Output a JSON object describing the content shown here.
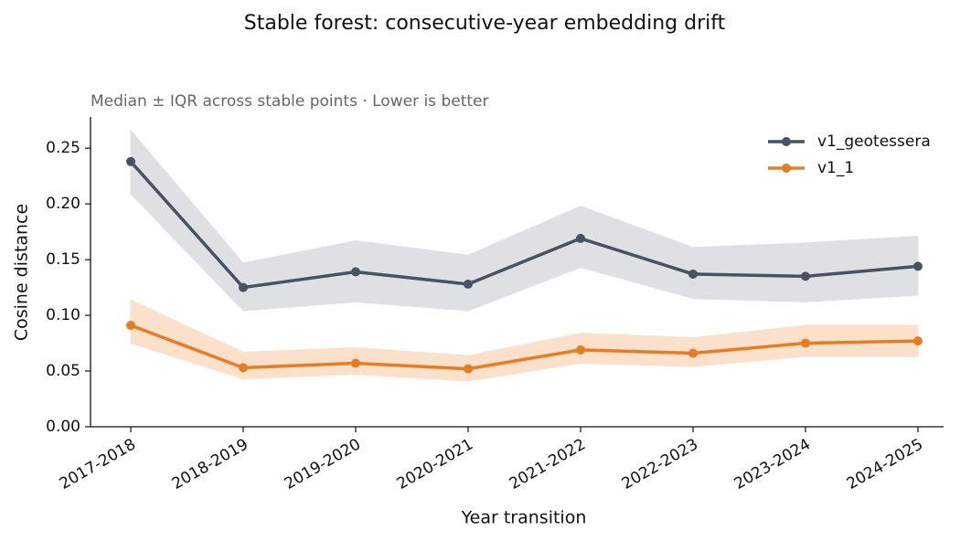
{
  "chart_data": {
    "type": "line",
    "title": "Stable forest: consecutive-year embedding drift",
    "subtitle": "Median ± IQR across stable points  ·  Lower is better",
    "x_label": "Year transition",
    "y_label": "Cosine distance",
    "categories": [
      "2017-2018",
      "2018-2019",
      "2019-2020",
      "2020-2021",
      "2021-2022",
      "2022-2023",
      "2023-2024",
      "2024-2025"
    ],
    "series": [
      {
        "name": "v1_geotessera",
        "color": "#475264",
        "band_color": "#dfe0e3",
        "values": [
          0.238,
          0.125,
          0.139,
          0.128,
          0.169,
          0.137,
          0.135,
          0.144
        ],
        "lower": [
          0.209,
          0.104,
          0.112,
          0.104,
          0.143,
          0.115,
          0.112,
          0.118
        ],
        "upper": [
          0.266,
          0.147,
          0.167,
          0.154,
          0.198,
          0.161,
          0.165,
          0.171
        ]
      },
      {
        "name": "v1_1",
        "color": "#e77d22",
        "band_color": "#fbe0cc",
        "values": [
          0.091,
          0.053,
          0.057,
          0.052,
          0.069,
          0.066,
          0.075,
          0.077
        ],
        "lower": [
          0.075,
          0.043,
          0.047,
          0.041,
          0.057,
          0.054,
          0.063,
          0.063
        ],
        "upper": [
          0.114,
          0.067,
          0.071,
          0.064,
          0.084,
          0.08,
          0.091,
          0.091
        ]
      }
    ],
    "ylim": [
      0,
      0.278
    ],
    "yticks": [
      {
        "value": 0,
        "label": "0.00"
      },
      {
        "value": 0.05,
        "label": "0.05"
      },
      {
        "value": 0.1,
        "label": "0.10"
      },
      {
        "value": 0.15,
        "label": "0.15"
      },
      {
        "value": 0.2,
        "label": "0.20"
      },
      {
        "value": 0.25,
        "label": "0.25"
      }
    ],
    "legend": "upper right"
  }
}
